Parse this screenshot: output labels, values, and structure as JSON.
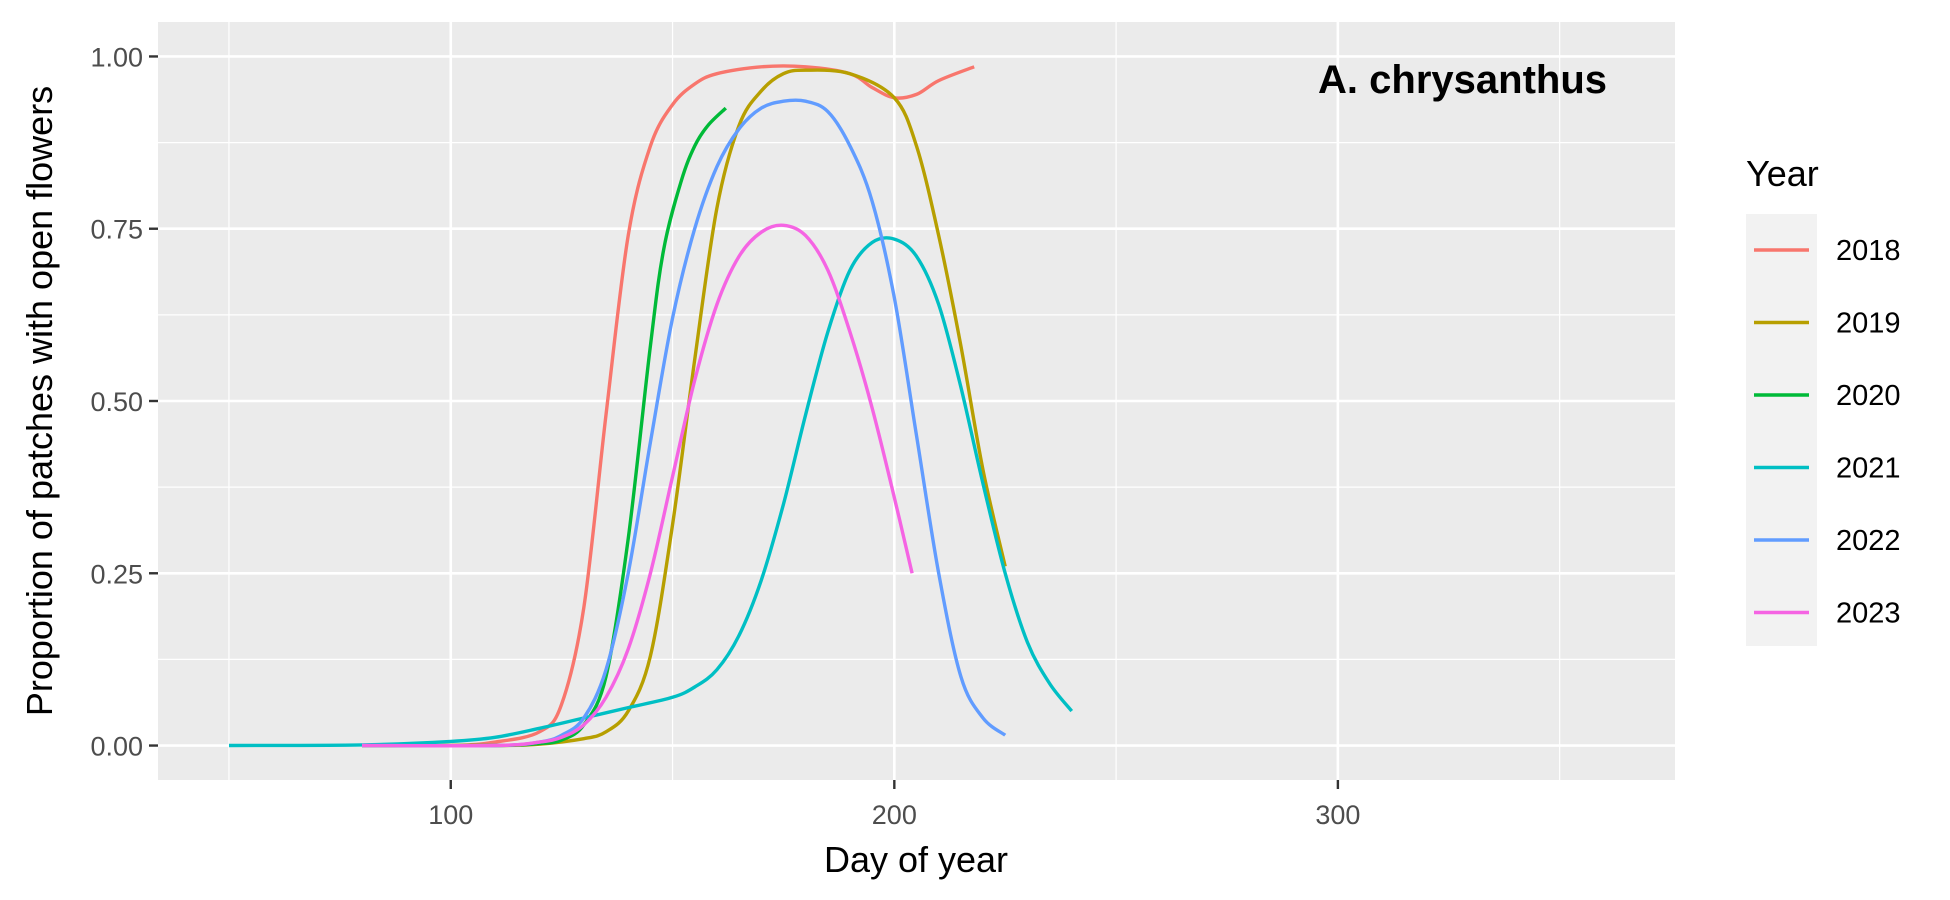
{
  "chart_data": {
    "type": "line",
    "title": "",
    "annotation": "A. chrysanthus",
    "xlabel": "Day of year",
    "ylabel": "Proportion of patches with open flowers",
    "xlim": [
      34,
      376
    ],
    "ylim": [
      -0.05,
      1.05
    ],
    "x_ticks": [
      100,
      200,
      300
    ],
    "x_tick_labels": [
      "100",
      "200",
      "300"
    ],
    "y_ticks": [
      0,
      0.25,
      0.5,
      0.75,
      1.0
    ],
    "y_tick_labels": [
      "0.00",
      "0.25",
      "0.50",
      "0.75",
      "1.00"
    ],
    "grid": true,
    "legend_title": "Year",
    "legend_position": "right",
    "series": [
      {
        "name": "2018",
        "color": "#F8766D",
        "x": [
          80,
          100,
          110,
          120,
          125,
          130,
          135,
          140,
          145,
          150,
          155,
          160,
          170,
          180,
          190,
          195,
          200,
          205,
          210,
          218
        ],
        "y": [
          0.0,
          0.0,
          0.005,
          0.02,
          0.06,
          0.2,
          0.48,
          0.74,
          0.87,
          0.93,
          0.96,
          0.975,
          0.985,
          0.985,
          0.975,
          0.955,
          0.94,
          0.945,
          0.965,
          0.985
        ]
      },
      {
        "name": "2019",
        "color": "#B79F00",
        "x": [
          80,
          110,
          120,
          130,
          135,
          140,
          145,
          150,
          155,
          160,
          165,
          170,
          175,
          180,
          190,
          200,
          205,
          210,
          215,
          220,
          225
        ],
        "y": [
          0.0,
          0.0,
          0.002,
          0.01,
          0.02,
          0.05,
          0.13,
          0.32,
          0.56,
          0.78,
          0.9,
          0.95,
          0.975,
          0.98,
          0.975,
          0.94,
          0.87,
          0.74,
          0.58,
          0.4,
          0.26
        ]
      },
      {
        "name": "2020",
        "color": "#00BA38",
        "x": [
          80,
          110,
          120,
          125,
          130,
          135,
          140,
          145,
          148,
          152,
          155,
          158,
          162
        ],
        "y": [
          0.0,
          0.0,
          0.003,
          0.008,
          0.03,
          0.1,
          0.3,
          0.58,
          0.72,
          0.82,
          0.87,
          0.9,
          0.925
        ]
      },
      {
        "name": "2021",
        "color": "#00BFC4",
        "x": [
          50,
          80,
          100,
          110,
          120,
          130,
          140,
          150,
          155,
          160,
          165,
          170,
          175,
          180,
          185,
          190,
          195,
          200,
          205,
          210,
          215,
          220,
          225,
          230,
          235,
          240
        ],
        "y": [
          0.0,
          0.001,
          0.006,
          0.012,
          0.025,
          0.04,
          0.055,
          0.07,
          0.085,
          0.11,
          0.16,
          0.24,
          0.35,
          0.48,
          0.6,
          0.69,
          0.73,
          0.735,
          0.71,
          0.64,
          0.52,
          0.38,
          0.25,
          0.15,
          0.09,
          0.05
        ]
      },
      {
        "name": "2022",
        "color": "#619CFF",
        "x": [
          80,
          110,
          120,
          125,
          130,
          135,
          140,
          145,
          150,
          155,
          160,
          165,
          170,
          175,
          180,
          185,
          190,
          195,
          200,
          205,
          210,
          215,
          220,
          225
        ],
        "y": [
          0.0,
          0.0,
          0.005,
          0.015,
          0.04,
          0.11,
          0.25,
          0.44,
          0.62,
          0.75,
          0.84,
          0.895,
          0.925,
          0.935,
          0.935,
          0.92,
          0.87,
          0.79,
          0.65,
          0.45,
          0.25,
          0.1,
          0.04,
          0.015
        ]
      },
      {
        "name": "2023",
        "color": "#F564E3",
        "x": [
          80,
          110,
          120,
          125,
          130,
          135,
          140,
          145,
          150,
          155,
          160,
          165,
          170,
          175,
          180,
          185,
          190,
          195,
          200,
          204
        ],
        "y": [
          0.0,
          0.0,
          0.005,
          0.012,
          0.03,
          0.07,
          0.14,
          0.25,
          0.39,
          0.53,
          0.64,
          0.71,
          0.745,
          0.755,
          0.74,
          0.69,
          0.6,
          0.49,
          0.36,
          0.25
        ]
      }
    ]
  }
}
